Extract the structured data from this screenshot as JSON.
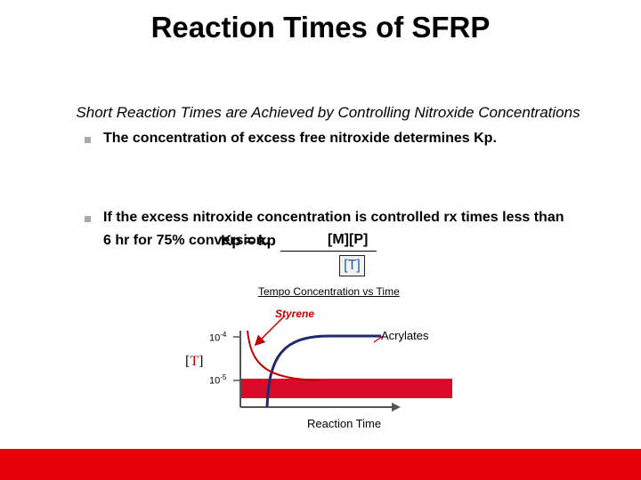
{
  "title": "Reaction Times of SFRP",
  "subtitle": "Short Reaction Times are Achieved by Controlling Nitroxide Concentrations",
  "bullets": [
    "The concentration of excess free nitroxide determines Kp.",
    "If the excess nitroxide concentration is controlled rx times less than",
    "6 hr for 75% conversion."
  ],
  "formula": {
    "lhs": "Kp = kp",
    "numerator": "[M][P]",
    "denominator": "[T]"
  },
  "chart": {
    "title": "Tempo Concentration vs Time",
    "series_styrene": "Styrene",
    "series_acrylates": "Acrylates",
    "xlabel": "Reaction Time",
    "ylabel_open": "[",
    "ylabel_t": "T",
    "ylabel_close": "]",
    "tick_high_base": "10",
    "tick_high_exp": "-4",
    "tick_low_base": "10",
    "tick_low_exp": "-5"
  },
  "colors": {
    "styrene": "#c00000",
    "acrylates": "#1f2a6e",
    "band": "#dc0a2a",
    "footer": "#e8000b"
  }
}
